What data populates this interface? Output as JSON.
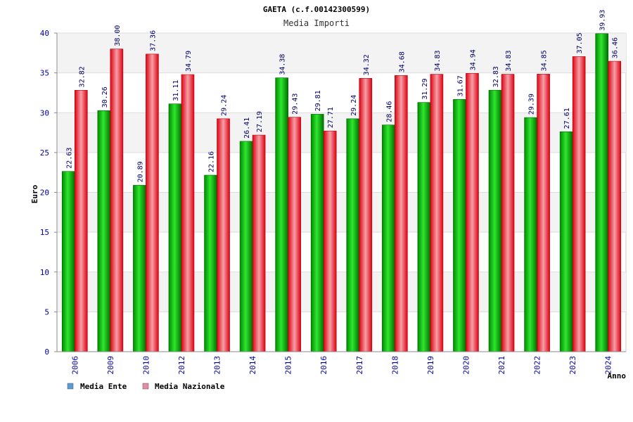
{
  "chart_data": {
    "type": "bar",
    "title": "GAETA (c.f.00142300599)",
    "subtitle": "Media Importi",
    "xlabel": "Anno",
    "ylabel": "Euro",
    "ylim": [
      0,
      40
    ],
    "yticks": [
      0,
      5,
      10,
      15,
      20,
      25,
      30,
      35,
      40
    ],
    "grid": true,
    "legend_position": "bottom-left",
    "categories": [
      "2006",
      "2009",
      "2010",
      "2012",
      "2013",
      "2014",
      "2015",
      "2016",
      "2017",
      "2018",
      "2019",
      "2020",
      "2021",
      "2022",
      "2023",
      "2024"
    ],
    "series": [
      {
        "name": "Media Ente",
        "color": "#00b800",
        "values": [
          22.63,
          30.26,
          20.89,
          31.11,
          22.16,
          26.41,
          34.38,
          29.81,
          29.24,
          28.46,
          31.29,
          31.67,
          32.83,
          29.39,
          27.61,
          39.93
        ],
        "labels": [
          "22.63",
          "30.26",
          "20.89",
          "31.11",
          "22.16",
          "26.41",
          "34.38",
          "29.81",
          "29.24",
          "28.46",
          "31.29",
          "31.67",
          "32.83",
          "29.39",
          "27.61",
          "39.93"
        ]
      },
      {
        "name": "Media Nazionale",
        "color": "#e8101c",
        "values": [
          32.82,
          38.0,
          37.36,
          34.79,
          29.24,
          27.19,
          29.43,
          27.71,
          34.32,
          34.68,
          34.83,
          34.94,
          34.83,
          34.85,
          37.05,
          36.46
        ],
        "labels": [
          "32.82",
          "38.00",
          "37.36",
          "34.79",
          "29.24",
          "27.19",
          "29.43",
          "27.71",
          "34.32",
          "34.68",
          "34.83",
          "34.94",
          "34.83",
          "34.85",
          "37.05",
          "36.46"
        ]
      }
    ],
    "legend": [
      {
        "label": "Media Ente",
        "swatch": "#5b9bd5"
      },
      {
        "label": "Media Nazionale",
        "swatch": "#e88aa4"
      }
    ]
  }
}
